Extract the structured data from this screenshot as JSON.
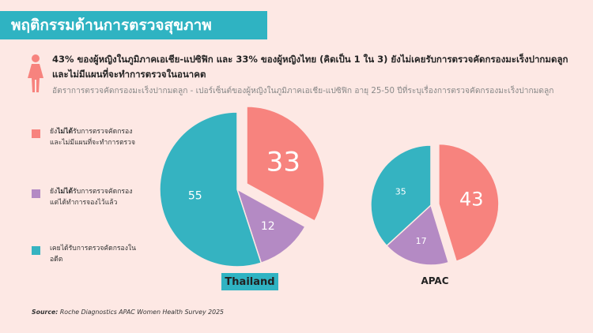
{
  "title": "พฤติกรรมด้านการตรวจสุขภาพ",
  "headline": "43% ของผู้หญิงในภูมิภาคเอเชีย-แปซิฟิก และ 33% ของผู้หญิงไทย (คิดเป็น 1 ใน 3) ยังไม่เคยรับการตรวจคัดกรองมะเร็งปากมดลูกและไม่มีแผนที่จะทำการตรวจในอนาคต",
  "subtitle": "อัตราการตรวจคัดกรองมะเร็งปากมดลูก - เปอร์เซ็นต์ของผู้หญิงในภูมิภาคเอเชีย-แปซิฟิก อายุ 25-50 ปีที่ระบุเรื่องการตรวจคัดกรองมะเร็งปากมดลูก",
  "legend": [
    {
      "prefix": "ยัง",
      "bold": "ไม่ได้",
      "rest": "รับการตรวจคัดกรองและไม่มีแผนที่จะทำการตรวจ",
      "color": "#f7837e"
    },
    {
      "prefix": "ยัง",
      "bold": "ไม่ได้",
      "rest": "รับการตรวจคัดกรอง แต่ได้ทำการจองไว้แล้ว",
      "color": "#b48ac4"
    },
    {
      "prefix": "",
      "bold": "",
      "rest": "เคยได้รับการตรวจคัดกรองในอดีต",
      "color": "#35b3c1"
    }
  ],
  "source_label": "Source:",
  "source_text": " Roche Diagnostics APAC Women Health Survey 2025",
  "colors": {
    "accent": "#2fb3c2",
    "not_screened": "#f7837e",
    "booked": "#b48ac4",
    "screened": "#35b3c1"
  },
  "chart_data": [
    {
      "type": "pie",
      "name": "Thailand",
      "categories": [
        "ยังไม่ได้รับการตรวจคัดกรองและไม่มีแผนที่จะทำการตรวจ",
        "ยังไม่ได้รับการตรวจคัดกรอง แต่ได้ทำการจองไว้แล้ว",
        "เคยได้รับการตรวจคัดกรองในอดีต"
      ],
      "values": [
        33,
        12,
        55
      ],
      "colors": [
        "#f7837e",
        "#b48ac4",
        "#35b3c1"
      ],
      "exploded": [
        true,
        false,
        false
      ]
    },
    {
      "type": "pie",
      "name": "APAC",
      "categories": [
        "ยังไม่ได้รับการตรวจคัดกรองและไม่มีแผนที่จะทำการตรวจ",
        "ยังไม่ได้รับการตรวจคัดกรอง แต่ได้ทำการจองไว้แล้ว",
        "เคยได้รับการตรวจคัดกรองในอดีต"
      ],
      "values": [
        43,
        17,
        35
      ],
      "colors": [
        "#f7837e",
        "#b48ac4",
        "#35b3c1"
      ],
      "exploded": [
        true,
        false,
        false
      ]
    }
  ]
}
